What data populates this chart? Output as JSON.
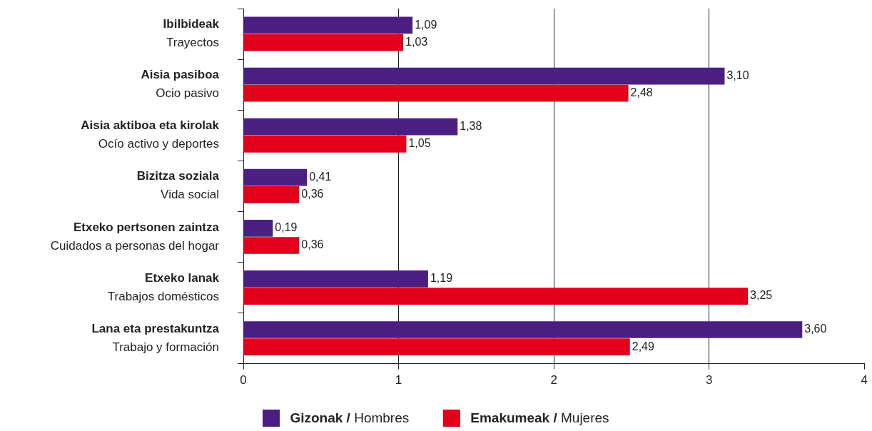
{
  "chart_data": {
    "type": "bar",
    "orientation": "horizontal",
    "categories": [
      "Ibilbideak\nTrayectos",
      "Aisia pasiboa\nOcio pasivo",
      "Aisia aktiboa eta kirolak\nOcío activo y deportes",
      "Bizitza soziala\nVida social",
      "Etxeko pertsonen zaintza\nCuidados a personas del hogar",
      "Etxeko lanak\nTrabajos domésticos",
      "Lana eta prestakuntza\nTrabajo y formación"
    ],
    "series": [
      {
        "name": "Gizonak / Hombres",
        "color": "#4b1f82",
        "values": [
          1.09,
          3.1,
          1.38,
          0.41,
          0.19,
          1.19,
          3.6
        ],
        "value_labels": [
          "1,09",
          "3,10",
          "1,38",
          "0,41",
          "0,19",
          "1,19",
          "3,60"
        ]
      },
      {
        "name": "Emakumeak / Mujeres",
        "color": "#e2001a",
        "values": [
          1.03,
          2.48,
          1.05,
          0.36,
          0.36,
          3.25,
          2.49
        ],
        "value_labels": [
          "1,03",
          "2,48",
          "1,05",
          "0,36",
          "0,36",
          "3,25",
          "2,49"
        ]
      }
    ],
    "xlim": [
      0,
      4
    ],
    "xticks": [
      0,
      1,
      2,
      3,
      4
    ],
    "grid": "x",
    "legend": "bottom"
  }
}
